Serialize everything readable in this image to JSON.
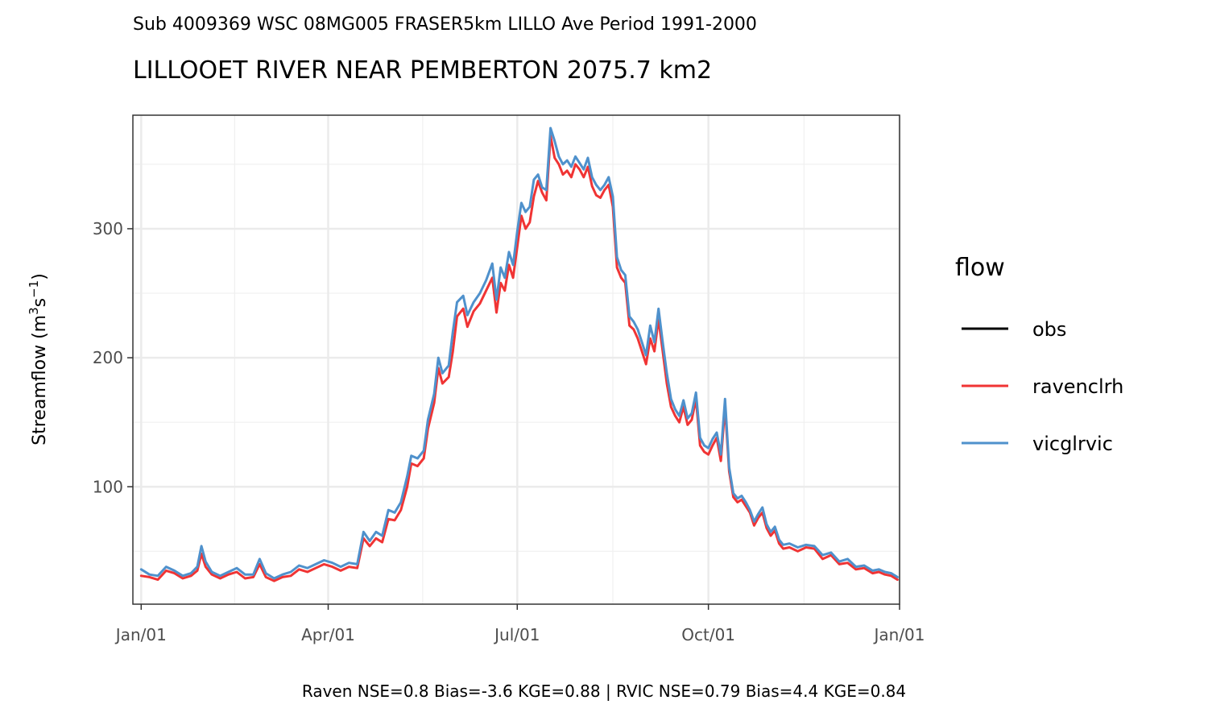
{
  "subtitle": "Sub 4009369 WSC 08MG005 FRASER5km LILLO Ave Period 1991-2000",
  "caption": "Raven NSE=0.8 Bias=-3.6 KGE=0.88 | RVIC NSE=0.79 Bias=4.4 KGE=0.84",
  "chart_data": {
    "type": "line",
    "title": "LILLOOET RIVER NEAR PEMBERTON 2075.7 km2",
    "xlabel": "",
    "ylabel": "Streamflow (m3s-1)",
    "ylabel_parts": {
      "main": "Streamflow (m",
      "sup1": "3",
      "mid": "s",
      "sup2": "−1",
      "end": ")"
    },
    "x_unit": "day of year",
    "xlim": [
      -4,
      365
    ],
    "ylim": [
      9,
      388
    ],
    "y_ticks": [
      100,
      200,
      300
    ],
    "x_ticks": [
      {
        "day": 0,
        "label": "Jan/01"
      },
      {
        "day": 90,
        "label": "Apr/01"
      },
      {
        "day": 181,
        "label": "Jul/01"
      },
      {
        "day": 273,
        "label": "Oct/01"
      },
      {
        "day": 365,
        "label": "Jan/01"
      }
    ],
    "grid": true,
    "legend": {
      "title": "flow",
      "position": "right"
    },
    "series": [
      {
        "name": "obs",
        "color": "#000000",
        "points": []
      },
      {
        "name": "ravenclrh",
        "color": "#f03434",
        "points": [
          [
            0,
            31
          ],
          [
            4,
            30
          ],
          [
            8,
            28
          ],
          [
            12,
            35
          ],
          [
            16,
            33
          ],
          [
            20,
            29
          ],
          [
            24,
            31
          ],
          [
            27,
            35
          ],
          [
            29,
            48
          ],
          [
            31,
            38
          ],
          [
            34,
            32
          ],
          [
            38,
            29
          ],
          [
            42,
            32
          ],
          [
            46,
            34
          ],
          [
            50,
            29
          ],
          [
            54,
            30
          ],
          [
            57,
            40
          ],
          [
            60,
            30
          ],
          [
            64,
            27
          ],
          [
            68,
            30
          ],
          [
            72,
            31
          ],
          [
            76,
            36
          ],
          [
            80,
            34
          ],
          [
            84,
            37
          ],
          [
            88,
            40
          ],
          [
            92,
            38
          ],
          [
            96,
            35
          ],
          [
            100,
            38
          ],
          [
            104,
            37
          ],
          [
            107,
            60
          ],
          [
            110,
            54
          ],
          [
            113,
            60
          ],
          [
            116,
            57
          ],
          [
            119,
            75
          ],
          [
            122,
            74
          ],
          [
            125,
            82
          ],
          [
            128,
            100
          ],
          [
            130,
            118
          ],
          [
            133,
            116
          ],
          [
            136,
            122
          ],
          [
            138,
            145
          ],
          [
            141,
            165
          ],
          [
            143,
            192
          ],
          [
            145,
            180
          ],
          [
            148,
            185
          ],
          [
            150,
            205
          ],
          [
            152,
            232
          ],
          [
            155,
            238
          ],
          [
            157,
            224
          ],
          [
            160,
            236
          ],
          [
            163,
            242
          ],
          [
            166,
            252
          ],
          [
            169,
            262
          ],
          [
            171,
            235
          ],
          [
            173,
            258
          ],
          [
            175,
            252
          ],
          [
            177,
            272
          ],
          [
            179,
            262
          ],
          [
            181,
            286
          ],
          [
            183,
            310
          ],
          [
            185,
            300
          ],
          [
            187,
            305
          ],
          [
            189,
            325
          ],
          [
            191,
            337
          ],
          [
            193,
            328
          ],
          [
            195,
            322
          ],
          [
            197,
            372
          ],
          [
            199,
            355
          ],
          [
            201,
            350
          ],
          [
            203,
            342
          ],
          [
            205,
            345
          ],
          [
            207,
            340
          ],
          [
            209,
            350
          ],
          [
            211,
            346
          ],
          [
            213,
            340
          ],
          [
            215,
            348
          ],
          [
            217,
            333
          ],
          [
            219,
            326
          ],
          [
            221,
            324
          ],
          [
            223,
            330
          ],
          [
            225,
            334
          ],
          [
            227,
            317
          ],
          [
            229,
            270
          ],
          [
            231,
            262
          ],
          [
            233,
            258
          ],
          [
            235,
            225
          ],
          [
            237,
            222
          ],
          [
            239,
            215
          ],
          [
            241,
            205
          ],
          [
            243,
            195
          ],
          [
            245,
            215
          ],
          [
            247,
            205
          ],
          [
            249,
            230
          ],
          [
            251,
            205
          ],
          [
            253,
            180
          ],
          [
            255,
            162
          ],
          [
            257,
            155
          ],
          [
            259,
            150
          ],
          [
            261,
            162
          ],
          [
            263,
            148
          ],
          [
            265,
            152
          ],
          [
            267,
            168
          ],
          [
            269,
            132
          ],
          [
            271,
            127
          ],
          [
            273,
            125
          ],
          [
            275,
            132
          ],
          [
            277,
            138
          ],
          [
            279,
            120
          ],
          [
            281,
            162
          ],
          [
            283,
            112
          ],
          [
            285,
            92
          ],
          [
            287,
            88
          ],
          [
            289,
            90
          ],
          [
            291,
            85
          ],
          [
            293,
            80
          ],
          [
            295,
            70
          ],
          [
            297,
            76
          ],
          [
            299,
            80
          ],
          [
            301,
            68
          ],
          [
            303,
            62
          ],
          [
            305,
            66
          ],
          [
            307,
            56
          ],
          [
            309,
            52
          ],
          [
            312,
            53
          ],
          [
            316,
            50
          ],
          [
            320,
            53
          ],
          [
            324,
            52
          ],
          [
            328,
            44
          ],
          [
            332,
            47
          ],
          [
            336,
            40
          ],
          [
            340,
            41
          ],
          [
            344,
            36
          ],
          [
            348,
            37
          ],
          [
            352,
            33
          ],
          [
            355,
            34
          ],
          [
            358,
            32
          ],
          [
            361,
            31
          ],
          [
            364,
            28
          ]
        ]
      },
      {
        "name": "vicglrvic",
        "color": "#4f91cc",
        "points": [
          [
            0,
            36
          ],
          [
            4,
            32
          ],
          [
            8,
            31
          ],
          [
            12,
            38
          ],
          [
            16,
            35
          ],
          [
            20,
            31
          ],
          [
            24,
            33
          ],
          [
            27,
            38
          ],
          [
            29,
            54
          ],
          [
            31,
            42
          ],
          [
            34,
            34
          ],
          [
            38,
            31
          ],
          [
            42,
            34
          ],
          [
            46,
            37
          ],
          [
            50,
            32
          ],
          [
            54,
            32
          ],
          [
            57,
            44
          ],
          [
            60,
            33
          ],
          [
            64,
            29
          ],
          [
            68,
            32
          ],
          [
            72,
            34
          ],
          [
            76,
            39
          ],
          [
            80,
            37
          ],
          [
            84,
            40
          ],
          [
            88,
            43
          ],
          [
            92,
            41
          ],
          [
            96,
            38
          ],
          [
            100,
            41
          ],
          [
            104,
            40
          ],
          [
            107,
            65
          ],
          [
            110,
            58
          ],
          [
            113,
            65
          ],
          [
            116,
            62
          ],
          [
            119,
            82
          ],
          [
            122,
            80
          ],
          [
            125,
            88
          ],
          [
            128,
            108
          ],
          [
            130,
            124
          ],
          [
            133,
            122
          ],
          [
            136,
            128
          ],
          [
            138,
            152
          ],
          [
            141,
            172
          ],
          [
            143,
            200
          ],
          [
            145,
            188
          ],
          [
            148,
            194
          ],
          [
            150,
            220
          ],
          [
            152,
            243
          ],
          [
            155,
            248
          ],
          [
            157,
            233
          ],
          [
            160,
            243
          ],
          [
            163,
            250
          ],
          [
            166,
            260
          ],
          [
            169,
            273
          ],
          [
            171,
            245
          ],
          [
            173,
            270
          ],
          [
            175,
            262
          ],
          [
            177,
            282
          ],
          [
            179,
            272
          ],
          [
            181,
            298
          ],
          [
            183,
            320
          ],
          [
            185,
            313
          ],
          [
            187,
            317
          ],
          [
            189,
            338
          ],
          [
            191,
            342
          ],
          [
            193,
            332
          ],
          [
            195,
            330
          ],
          [
            197,
            378
          ],
          [
            199,
            368
          ],
          [
            201,
            356
          ],
          [
            203,
            350
          ],
          [
            205,
            353
          ],
          [
            207,
            348
          ],
          [
            209,
            356
          ],
          [
            211,
            351
          ],
          [
            213,
            346
          ],
          [
            215,
            355
          ],
          [
            217,
            340
          ],
          [
            219,
            334
          ],
          [
            221,
            330
          ],
          [
            223,
            334
          ],
          [
            225,
            340
          ],
          [
            227,
            325
          ],
          [
            229,
            278
          ],
          [
            231,
            268
          ],
          [
            233,
            264
          ],
          [
            235,
            232
          ],
          [
            237,
            228
          ],
          [
            239,
            222
          ],
          [
            241,
            212
          ],
          [
            243,
            202
          ],
          [
            245,
            225
          ],
          [
            247,
            212
          ],
          [
            249,
            238
          ],
          [
            251,
            212
          ],
          [
            253,
            188
          ],
          [
            255,
            168
          ],
          [
            257,
            160
          ],
          [
            259,
            155
          ],
          [
            261,
            167
          ],
          [
            263,
            153
          ],
          [
            265,
            157
          ],
          [
            267,
            173
          ],
          [
            269,
            138
          ],
          [
            271,
            132
          ],
          [
            273,
            130
          ],
          [
            275,
            137
          ],
          [
            277,
            142
          ],
          [
            279,
            125
          ],
          [
            281,
            168
          ],
          [
            283,
            115
          ],
          [
            285,
            95
          ],
          [
            287,
            91
          ],
          [
            289,
            93
          ],
          [
            291,
            88
          ],
          [
            293,
            82
          ],
          [
            295,
            73
          ],
          [
            297,
            79
          ],
          [
            299,
            84
          ],
          [
            301,
            71
          ],
          [
            303,
            65
          ],
          [
            305,
            69
          ],
          [
            307,
            59
          ],
          [
            309,
            55
          ],
          [
            312,
            56
          ],
          [
            316,
            53
          ],
          [
            320,
            55
          ],
          [
            324,
            54
          ],
          [
            328,
            47
          ],
          [
            332,
            49
          ],
          [
            336,
            42
          ],
          [
            340,
            44
          ],
          [
            344,
            38
          ],
          [
            348,
            39
          ],
          [
            352,
            35
          ],
          [
            355,
            36
          ],
          [
            358,
            34
          ],
          [
            361,
            33
          ],
          [
            364,
            30
          ]
        ]
      }
    ]
  }
}
